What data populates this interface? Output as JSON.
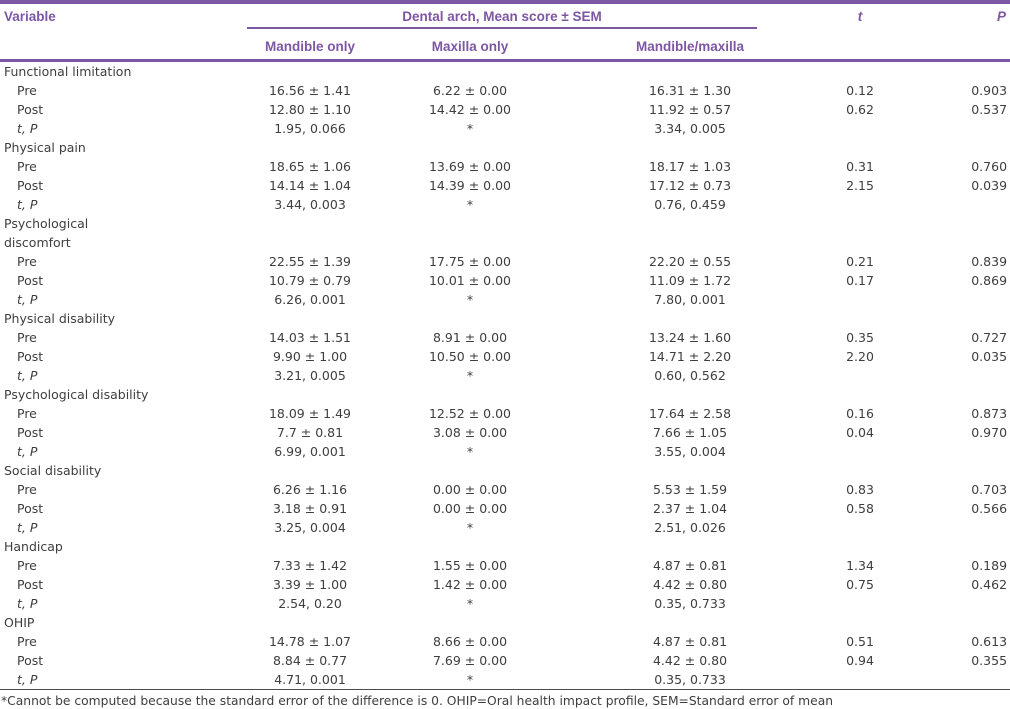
{
  "table": {
    "header": {
      "variable": "Variable",
      "span": "Dental arch, Mean score ± SEM",
      "sub_columns": [
        "Mandible only",
        "Maxilla only",
        "Mandible/maxilla"
      ],
      "t": "t",
      "p": "P"
    },
    "sections": [
      {
        "label_lines": [
          "Functional limitation"
        ],
        "rows": [
          {
            "label": "Pre",
            "italic": false,
            "cells": [
              "16.56 ± 1.41",
              "6.22 ± 0.00",
              "16.31 ± 1.30",
              "0.12",
              "0.903"
            ]
          },
          {
            "label": "Post",
            "italic": false,
            "cells": [
              "12.80 ± 1.10",
              "14.42 ± 0.00",
              "11.92 ± 0.57",
              "0.62",
              "0.537"
            ]
          },
          {
            "label": "t, P",
            "italic": true,
            "cells": [
              "1.95, 0.066",
              "*",
              "3.34, 0.005",
              "",
              ""
            ]
          }
        ]
      },
      {
        "label_lines": [
          "Physical pain"
        ],
        "rows": [
          {
            "label": "Pre",
            "italic": false,
            "cells": [
              "18.65 ± 1.06",
              "13.69 ± 0.00",
              "18.17 ± 1.03",
              "0.31",
              "0.760"
            ]
          },
          {
            "label": "Post",
            "italic": false,
            "cells": [
              "14.14 ± 1.04",
              "14.39 ± 0.00",
              "17.12 ± 0.73",
              "2.15",
              "0.039"
            ]
          },
          {
            "label": "t, P",
            "italic": true,
            "cells": [
              "3.44, 0.003",
              "*",
              "0.76, 0.459",
              "",
              ""
            ]
          }
        ]
      },
      {
        "label_lines": [
          "Psychological",
          "discomfort"
        ],
        "rows": [
          {
            "label": "Pre",
            "italic": false,
            "cells": [
              "22.55 ± 1.39",
              "17.75 ± 0.00",
              "22.20 ± 0.55",
              "0.21",
              "0.839"
            ]
          },
          {
            "label": "Post",
            "italic": false,
            "cells": [
              "10.79 ± 0.79",
              "10.01 ± 0.00",
              "11.09 ± 1.72",
              "0.17",
              "0.869"
            ]
          },
          {
            "label": "t, P",
            "italic": true,
            "cells": [
              "6.26, 0.001",
              "*",
              "7.80, 0.001",
              "",
              ""
            ]
          }
        ]
      },
      {
        "label_lines": [
          "Physical disability"
        ],
        "rows": [
          {
            "label": "Pre",
            "italic": false,
            "cells": [
              "14.03 ± 1.51",
              "8.91 ± 0.00",
              "13.24 ± 1.60",
              "0.35",
              "0.727"
            ]
          },
          {
            "label": "Post",
            "italic": false,
            "cells": [
              "9.90 ± 1.00",
              "10.50 ± 0.00",
              "14.71 ± 2.20",
              "2.20",
              "0.035"
            ]
          },
          {
            "label": "t, P",
            "italic": true,
            "cells": [
              "3.21, 0.005",
              "*",
              "0.60, 0.562",
              "",
              ""
            ]
          }
        ]
      },
      {
        "label_lines": [
          "Psychological disability"
        ],
        "rows": [
          {
            "label": "Pre",
            "italic": false,
            "cells": [
              "18.09 ± 1.49",
              "12.52 ± 0.00",
              "17.64 ± 2.58",
              "0.16",
              "0.873"
            ]
          },
          {
            "label": "Post",
            "italic": false,
            "cells": [
              "7.7 ± 0.81",
              "3.08 ± 0.00",
              "7.66 ± 1.05",
              "0.04",
              "0.970"
            ]
          },
          {
            "label": "t, P",
            "italic": true,
            "cells": [
              "6.99, 0.001",
              "*",
              "3.55, 0.004",
              "",
              ""
            ]
          }
        ]
      },
      {
        "label_lines": [
          "Social disability"
        ],
        "rows": [
          {
            "label": "Pre",
            "italic": false,
            "cells": [
              "6.26 ± 1.16",
              "0.00 ± 0.00",
              "5.53 ± 1.59",
              "0.83",
              "0.703"
            ]
          },
          {
            "label": "Post",
            "italic": false,
            "cells": [
              "3.18 ± 0.91",
              "0.00 ± 0.00",
              "2.37 ± 1.04",
              "0.58",
              "0.566"
            ]
          },
          {
            "label": "t, P",
            "italic": true,
            "cells": [
              "3.25, 0.004",
              "*",
              "2.51, 0.026",
              "",
              ""
            ]
          }
        ]
      },
      {
        "label_lines": [
          "Handicap"
        ],
        "rows": [
          {
            "label": "Pre",
            "italic": false,
            "cells": [
              "7.33 ± 1.42",
              "1.55 ± 0.00",
              "4.87 ± 0.81",
              "1.34",
              "0.189"
            ]
          },
          {
            "label": "Post",
            "italic": false,
            "cells": [
              "3.39 ± 1.00",
              "1.42 ± 0.00",
              "4.42 ± 0.80",
              "0.75",
              "0.462"
            ]
          },
          {
            "label": "t, P",
            "italic": true,
            "cells": [
              "2.54, 0.20",
              "*",
              "0.35, 0.733",
              "",
              ""
            ]
          }
        ]
      },
      {
        "label_lines": [
          "OHIP"
        ],
        "rows": [
          {
            "label": "Pre",
            "italic": false,
            "cells": [
              "14.78 ± 1.07",
              "8.66 ± 0.00",
              "4.87 ± 0.81",
              "0.51",
              "0.613"
            ]
          },
          {
            "label": "Post",
            "italic": false,
            "cells": [
              "8.84 ± 0.77",
              "7.69 ± 0.00",
              "4.42 ± 0.80",
              "0.94",
              "0.355"
            ]
          },
          {
            "label": "t, P",
            "italic": true,
            "cells": [
              "4.71, 0.001",
              "*",
              "0.35, 0.733",
              "",
              ""
            ]
          }
        ]
      }
    ],
    "footnote": "*Cannot be computed because the standard error of the difference is 0. OHIP=Oral health impact profile, SEM=Standard error of mean",
    "colors": {
      "accent_purple": "#7d56a4",
      "body_text": "#3e3e3e"
    }
  }
}
